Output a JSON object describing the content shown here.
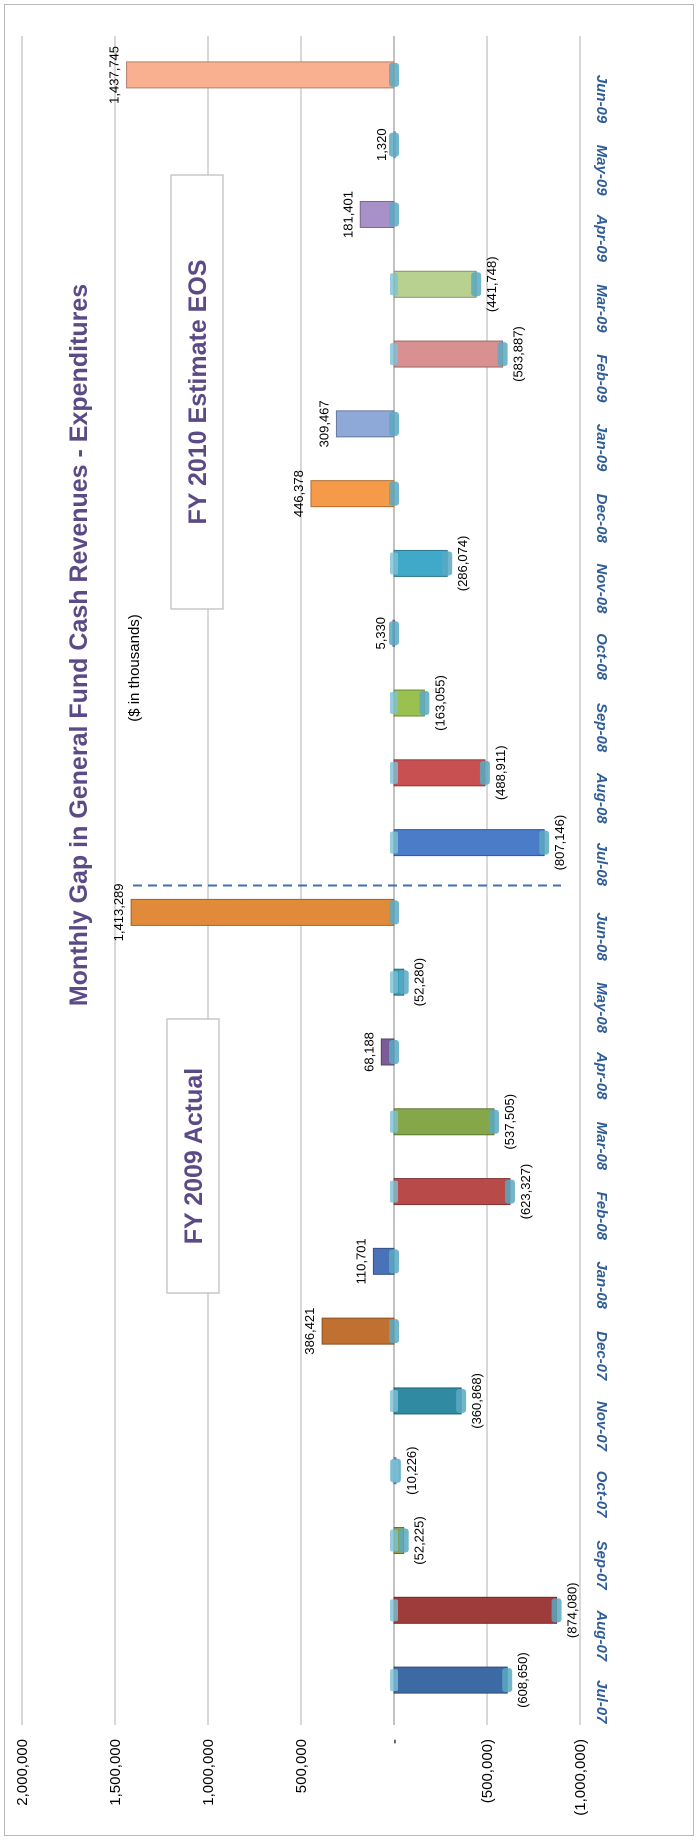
{
  "chart_data": {
    "type": "bar",
    "orientation": "rotated-90",
    "title": "Monthly Gap in General Fund Cash Revenues - Expenditures",
    "subtitle": "($ in thousands)",
    "ylim": [
      -1000000,
      2000000
    ],
    "y_ticks": [
      {
        "value": 2000000,
        "label": "2,000,000"
      },
      {
        "value": 1500000,
        "label": "1,500,000"
      },
      {
        "value": 1000000,
        "label": "1,000,000"
      },
      {
        "value": 500000,
        "label": "500,000"
      },
      {
        "value": 0,
        "label": "-"
      },
      {
        "value": -500000,
        "label": "(500,000)"
      },
      {
        "value": -1000000,
        "label": "(1,000,000)"
      }
    ],
    "grid": true,
    "categories": [
      "Jul-07",
      "Aug-07",
      "Sep-07",
      "Oct-07",
      "Nov-07",
      "Dec-07",
      "Jan-08",
      "Feb-08",
      "Mar-08",
      "Apr-08",
      "May-08",
      "Jun-08",
      "Jul-08",
      "Aug-08",
      "Sep-08",
      "Oct-08",
      "Nov-08",
      "Dec-08",
      "Jan-09",
      "Feb-09",
      "Mar-09",
      "Apr-09",
      "May-09",
      "Jun-09"
    ],
    "series": [
      {
        "values": [
          -608650,
          -874080,
          -52225,
          -10226,
          -360868,
          386421,
          110701,
          -623327,
          -537505,
          68188,
          -52280,
          1413289,
          -807146,
          -488911,
          -163055,
          5330,
          -286074,
          446378,
          309467,
          -583887,
          -441748,
          181401,
          1320,
          1437745
        ],
        "labels": [
          "(608,650)",
          "(874,080)",
          "(52,225)",
          "(10,226)",
          "(360,868)",
          "386,421",
          "110,701",
          "(623,327)",
          "(537,505)",
          "68,188",
          "(52,280)",
          "1,413,289",
          "(807,146)",
          "(488,911)",
          "(163,055)",
          "5,330",
          "(286,074)",
          "446,378",
          "309,467",
          "(583,887)",
          "(441,748)",
          "181,401",
          "1,320",
          "1,437,745"
        ]
      }
    ],
    "colors": [
      "#3d6aa5",
      "#9e3b3b",
      "#88a04a",
      "#8a8fc4",
      "#2f8aa2",
      "#c07030",
      "#4a72b8",
      "#b84a4a",
      "#86a64a",
      "#7a5c98",
      "#3a9ab0",
      "#e08a3a",
      "#4a7cc8",
      "#c85050",
      "#9ac050",
      "#9a78b8",
      "#40a8c8",
      "#f59a48",
      "#8ea8d8",
      "#d89090",
      "#b8d090",
      "#a890c8",
      "#a0c8dc",
      "#f8b090"
    ],
    "annotations": {
      "fy2009": "FY 2009 Actual",
      "fy2010": "FY 2010 Estimate EOS"
    }
  }
}
